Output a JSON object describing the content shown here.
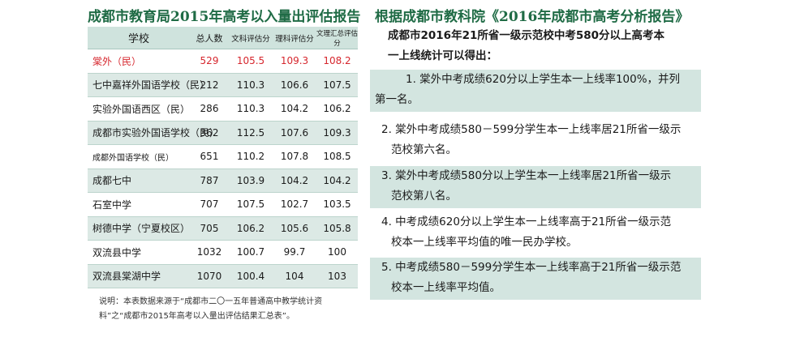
{
  "left": {
    "title": "成都市教育局2015年高考以入量出评估报告",
    "headers": [
      "学校",
      "总人数",
      "文科评估分",
      "理科评估分",
      "文理汇总评估分"
    ],
    "rows": [
      {
        "name": "棠外（民）",
        "total": "529",
        "wen": "105.5",
        "li": "109.3",
        "sum": "108.2"
      },
      {
        "name": "七中嘉祥外国语学校（民）",
        "total": "212",
        "wen": "110.3",
        "li": "106.6",
        "sum": "107.5"
      },
      {
        "name": "实验外国语西区（民）",
        "total": "286",
        "wen": "110.3",
        "li": "104.2",
        "sum": "106.2"
      },
      {
        "name": "成都市实验外国语学校（民）",
        "total": "362",
        "wen": "112.5",
        "li": "107.6",
        "sum": "109.3"
      },
      {
        "name": "成都外国语学校（民）",
        "total": "651",
        "wen": "110.2",
        "li": "107.8",
        "sum": "108.5"
      },
      {
        "name": "成都七中",
        "total": "787",
        "wen": "103.9",
        "li": "104.2",
        "sum": "104.2"
      },
      {
        "name": "石室中学",
        "total": "707",
        "wen": "107.5",
        "li": "102.7",
        "sum": "103.5"
      },
      {
        "name": "树德中学（宁夏校区）",
        "total": "705",
        "wen": "106.2",
        "li": "105.6",
        "sum": "105.8"
      },
      {
        "name": "双流县中学",
        "total": "1032",
        "wen": "100.7",
        "li": "99.7",
        "sum": "100"
      },
      {
        "name": "双流县棠湖中学",
        "total": "1070",
        "wen": "100.4",
        "li": "104",
        "sum": "103"
      }
    ],
    "note_line1": "说明：本表数据来源于“成都市二〇一五年普通高中教学统计资",
    "note_line2": "料”之“成都市2015年高考以入量出评估结果汇总表”。"
  },
  "right": {
    "title": "根据成都市教科院《2016年成都市高考分析报告》",
    "intro_line1": "成都市2016年21所省一级示范校中考580分以上高考本",
    "intro_line2": "一上线统计可以得出：",
    "findings": [
      {
        "line1": "1. 棠外中考成绩620分以上学生本一上线率100%，并列",
        "line2": "第一名。"
      },
      {
        "line1": "2. 棠外中考成绩580－599分学生本一上线率居21所省一级示",
        "line2": "范校第六名。"
      },
      {
        "line1": "3. 棠外中考成绩580分以上学生本一上线率居21所省一级示",
        "line2": "范校第八名。"
      },
      {
        "line1": "4. 中考成绩620分以上学生本一上线率高于21所省一级示范",
        "line2": "校本一上线率平均值的唯一民办学校。"
      },
      {
        "line1": "5. 中考成绩580－599分学生本一上线率高于21所省一级示范",
        "line2": "校本一上线率平均值。"
      }
    ]
  },
  "colors": {
    "title_green": "#1f6b45",
    "highlight_red": "#d6262d",
    "shade": "#d3e5e0",
    "header_bg": "#cfe3dd"
  }
}
